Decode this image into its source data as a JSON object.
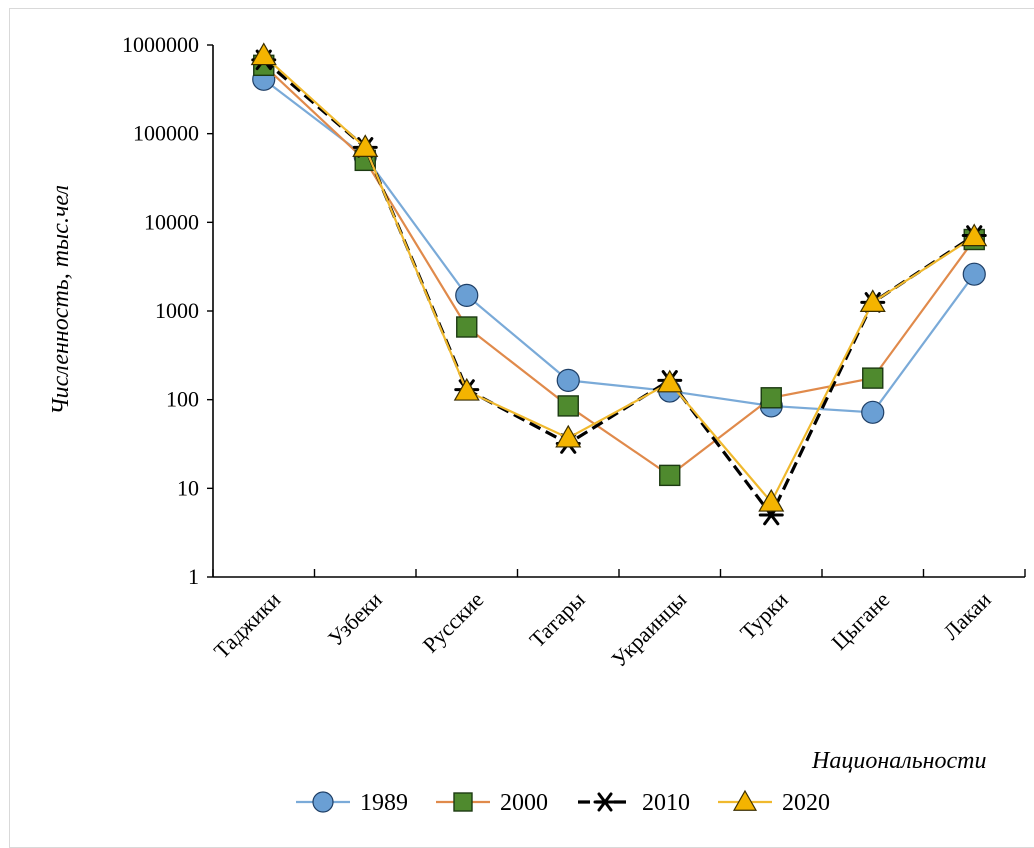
{
  "chart_data": {
    "type": "line",
    "title": "",
    "xlabel": "Национальности",
    "ylabel": "Численность, тыс.чел",
    "yscale": "log",
    "ylim": [
      1,
      1000000
    ],
    "y_ticks": [
      "1",
      "10",
      "100",
      "1000",
      "10000",
      "100000",
      "1000000"
    ],
    "categories": [
      "Таджики",
      "Узбеки",
      "Русские",
      "Татары",
      "Украинцы",
      "Турки",
      "Цыгане",
      "Лакаи"
    ],
    "grid": false,
    "legend_position": "bottom",
    "series": [
      {
        "name": "1989",
        "color": "#6a9fd4",
        "line_color": "#7aaad8",
        "marker": "circle",
        "values": [
          410000,
          55000,
          1500,
          165,
          125,
          85,
          72,
          2600
        ]
      },
      {
        "name": "2000",
        "color": "#4f8a2e",
        "line_color": "#e08a4b",
        "marker": "square",
        "values": [
          590000,
          50000,
          660,
          85,
          14,
          105,
          175,
          6400
        ]
      },
      {
        "name": "2010",
        "color": "#000000",
        "line_color": "#000000",
        "marker": "star",
        "values": [
          680000,
          70000,
          130,
          32,
          165,
          5,
          1250,
          7100
        ]
      },
      {
        "name": "2020",
        "color": "#f4b400",
        "line_color": "#f0b92e",
        "marker": "triangle",
        "values": [
          760000,
          70000,
          125,
          37,
          155,
          7,
          1250,
          6900
        ]
      }
    ]
  }
}
